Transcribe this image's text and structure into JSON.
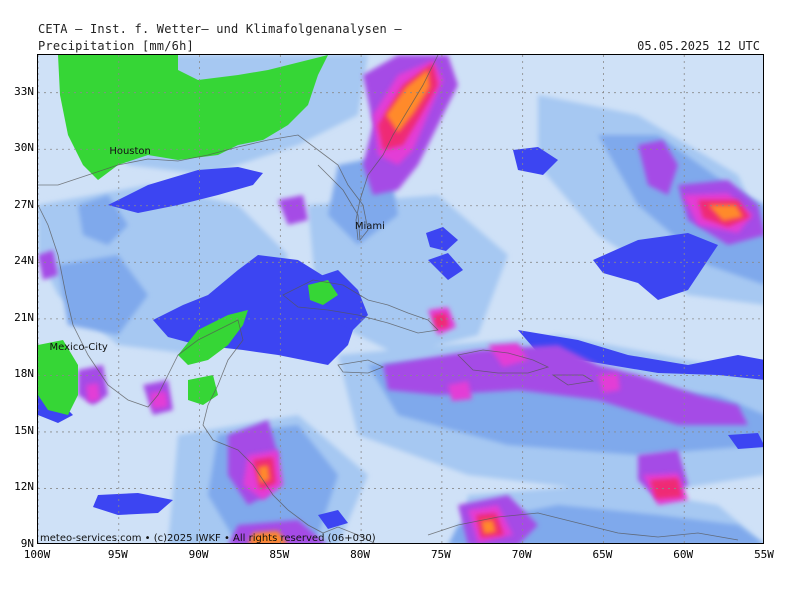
{
  "header": {
    "line1": "CETA — Inst. f. Wetter— und Klimafolgenanalysen —",
    "title": "Precipitation [mm/6h]",
    "datetime": "05.05.2025 12 UTC"
  },
  "map": {
    "lon_range": [
      -100,
      -55
    ],
    "lat_range": [
      9,
      35
    ],
    "lat_ticks": [
      {
        "value": 33,
        "label": "33N"
      },
      {
        "value": 30,
        "label": "30N"
      },
      {
        "value": 27,
        "label": "27N"
      },
      {
        "value": 24,
        "label": "24N"
      },
      {
        "value": 21,
        "label": "21N"
      },
      {
        "value": 18,
        "label": "18N"
      },
      {
        "value": 15,
        "label": "15N"
      },
      {
        "value": 12,
        "label": "12N"
      },
      {
        "value": 9,
        "label": "9N"
      }
    ],
    "lon_ticks": [
      {
        "value": -100,
        "label": "100W"
      },
      {
        "value": -95,
        "label": "95W"
      },
      {
        "value": -90,
        "label": "90W"
      },
      {
        "value": -85,
        "label": "85W"
      },
      {
        "value": -80,
        "label": "80W"
      },
      {
        "value": -75,
        "label": "75W"
      },
      {
        "value": -70,
        "label": "70W"
      },
      {
        "value": -65,
        "label": "65W"
      },
      {
        "value": -60,
        "label": "60W"
      },
      {
        "value": -55,
        "label": "55W"
      }
    ],
    "cities": [
      {
        "name": "Houston",
        "lon": -95.4,
        "lat": 29.8
      },
      {
        "name": "Miami",
        "lon": -80.2,
        "lat": 25.8
      },
      {
        "name": "Mexico-City",
        "lon": -99.1,
        "lat": 19.4
      }
    ],
    "grid": true,
    "colors": {
      "no_rain": "#36d636",
      "very_light": "#cfe1f7",
      "light": "#a6c8f2",
      "moderate_light": "#7fa9ec",
      "moderate": "#5a82ea",
      "heavy": "#3c45f2",
      "very_heavy": "#a54ce6",
      "intense": "#e33dd6",
      "extreme": "#ef2a74",
      "severe": "#ff8a2a"
    }
  },
  "footer": "meteo-services.com • (c)2025 IWKF • All rights reserved (06+030)"
}
